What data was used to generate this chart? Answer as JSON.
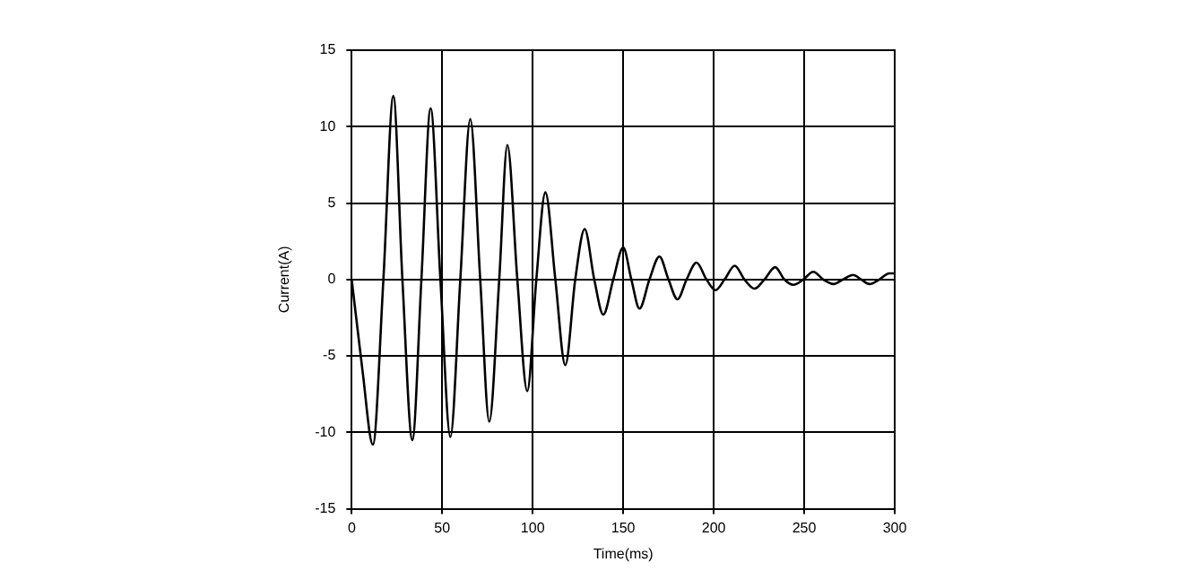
{
  "chart_data": {
    "type": "line",
    "xlabel": "Time(ms)",
    "ylabel": "Current(A)",
    "xlim": [
      0,
      300
    ],
    "xticks": [
      0,
      50,
      100,
      150,
      200,
      250,
      300
    ],
    "ylim": [
      -15,
      15
    ],
    "yticks": [
      -15,
      -10,
      -5,
      0,
      5,
      10,
      15
    ],
    "grid": true,
    "legend": false,
    "marker": "none",
    "line_style": "solid",
    "series": [
      {
        "color": "#000000",
        "x": [
          0,
          6,
          11.7,
          17.5,
          23,
          28,
          33.5,
          38.5,
          43.6,
          49,
          54.5,
          60,
          65.5,
          71,
          76,
          81.5,
          86,
          91.5,
          97,
          102,
          107,
          112.5,
          118,
          123.5,
          128.7,
          134,
          139,
          144.5,
          150,
          154.5,
          159,
          164.5,
          170,
          175,
          180,
          185,
          190.5,
          196,
          201,
          206,
          211.6,
          217,
          222.5,
          228,
          234,
          239,
          244,
          249.5,
          255,
          260.5,
          266,
          271.5,
          277,
          281.5,
          286,
          291.5,
          297,
          300
        ],
        "values": [
          0,
          -6,
          -10.8,
          0,
          12,
          0,
          -10.5,
          0,
          11.2,
          0,
          -10.3,
          0,
          10.5,
          0,
          -9.3,
          0,
          8.8,
          0,
          -7.3,
          0,
          5.7,
          0,
          -5.6,
          0,
          3.3,
          0,
          -2.3,
          0,
          2.1,
          0,
          -1.9,
          0,
          1.5,
          0,
          -1.3,
          0,
          1.1,
          0,
          -0.7,
          0,
          0.9,
          0,
          -0.6,
          0,
          0.8,
          0,
          -0.35,
          0,
          0.5,
          0,
          -0.3,
          0,
          0.3,
          0,
          -0.3,
          0,
          0.4,
          0.4
        ]
      }
    ]
  }
}
